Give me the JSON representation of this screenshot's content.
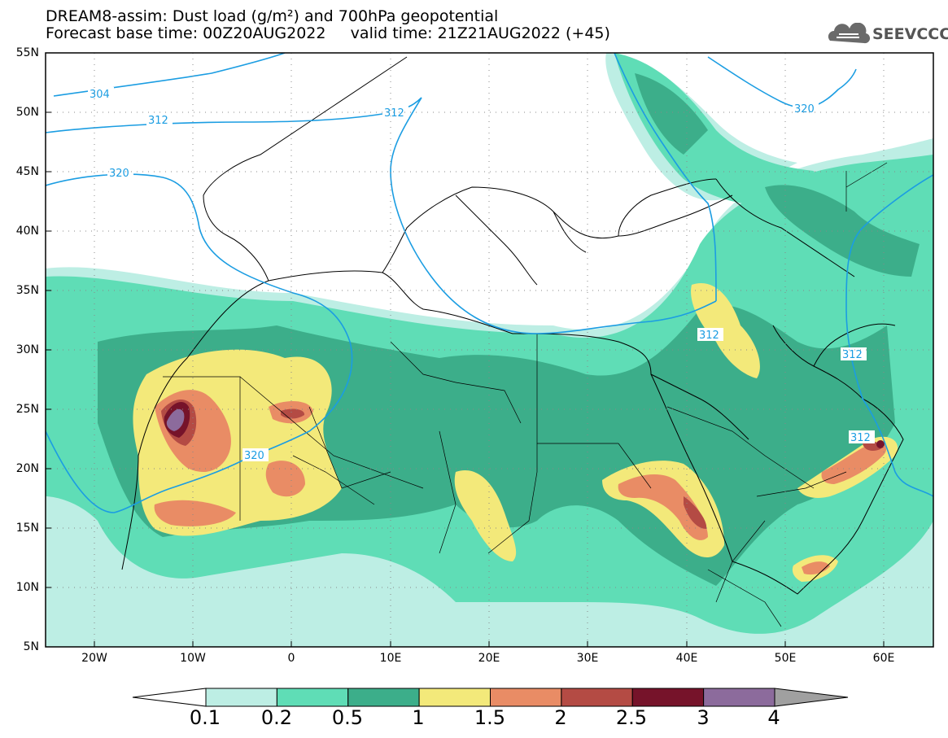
{
  "title": {
    "line1": "DREAM8-assim: Dust load (g/m²) and 700hPa geopotential",
    "line2": "Forecast base time: 00Z20AUG2022     valid time: 21Z21AUG2022 (+45)"
  },
  "logo": {
    "text": "SEEVCCC",
    "icon": "cloud-icon"
  },
  "map": {
    "lat_labels": [
      "55N",
      "50N",
      "45N",
      "40N",
      "35N",
      "30N",
      "25N",
      "20N",
      "15N",
      "10N",
      "5N"
    ],
    "lon_labels": [
      "20W",
      "10W",
      "0",
      "10E",
      "20E",
      "30E",
      "40E",
      "50E",
      "60E"
    ],
    "contour_labels": [
      "304",
      "312",
      "312",
      "320",
      "320",
      "320",
      "312",
      "312",
      "312"
    ],
    "colors": {
      "land_line": "#000000",
      "contour": "#1b9de2",
      "dust_0_1": "#bdeee4",
      "dust_0_2": "#5fddb6",
      "dust_0_5": "#3cae8a",
      "dust_1": "#f3e97a",
      "dust_1_5": "#e98c65",
      "dust_2": "#b44b44",
      "dust_2_5": "#76132a",
      "dust_3": "#8c6b9c",
      "dust_4": "#a0a0a0"
    }
  },
  "colorbar": {
    "labels": [
      "0.1",
      "0.2",
      "0.5",
      "1",
      "1.5",
      "2",
      "2.5",
      "3",
      "4"
    ],
    "colors": [
      "#bdeee4",
      "#5fddb6",
      "#3cae8a",
      "#f3e97a",
      "#e98c65",
      "#b44b44",
      "#76132a",
      "#8c6b9c"
    ]
  }
}
